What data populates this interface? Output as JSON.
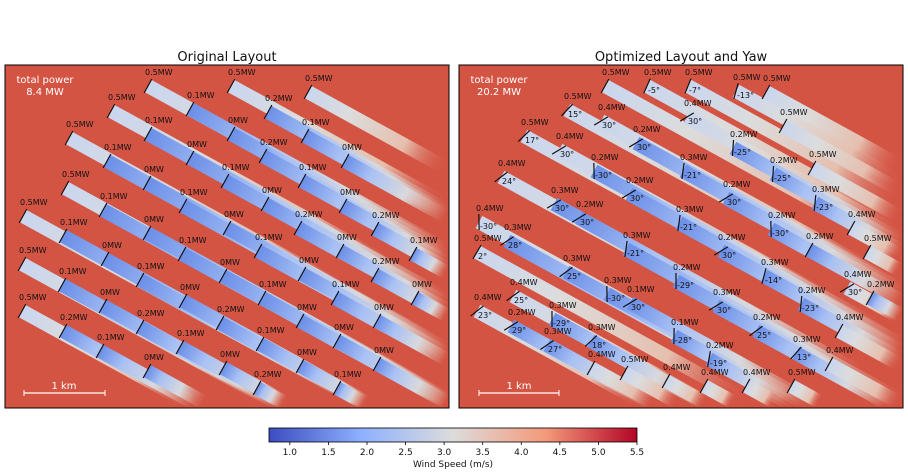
{
  "chart_data": {
    "type": "heatmap",
    "colorbar": {
      "label": "Wind Speed (m/s)",
      "ticks": [
        "1.0",
        "1.5",
        "2.0",
        "2.5",
        "3.0",
        "3.5",
        "4.0",
        "4.5",
        "5.0",
        "5.5"
      ],
      "range": [
        0.73,
        5.5
      ],
      "colormap": "coolwarm",
      "colors": [
        "#3b4cc0",
        "#8db0fe",
        "#dddcdc",
        "#f49a7b",
        "#b40426"
      ]
    },
    "background_color": "#d45444",
    "panels": [
      {
        "title": "Original Layout",
        "total_power_label": "total power",
        "total_power_value": "8.4 MW",
        "scale_label": "1 km",
        "turbines": [
          {
            "power": "0.5MW"
          },
          {
            "power": "0.5MW"
          },
          {
            "power": "0.5MW"
          },
          {
            "power": "0.5MW"
          },
          {
            "power": "0.1MW"
          },
          {
            "power": "0.2MW"
          },
          {
            "power": "0.5MW"
          },
          {
            "power": "0.1MW"
          },
          {
            "power": "0MW"
          },
          {
            "power": "0.1MW"
          },
          {
            "power": "0.1MW"
          },
          {
            "power": "0MW"
          },
          {
            "power": "0.2MW"
          },
          {
            "power": "0MW"
          },
          {
            "power": "0.5MW"
          },
          {
            "power": "0MW"
          },
          {
            "power": "0.1MW"
          },
          {
            "power": "0.1MW"
          },
          {
            "power": "0.5MW"
          },
          {
            "power": "0.1MW"
          },
          {
            "power": "0.1MW"
          },
          {
            "power": "0MW"
          },
          {
            "power": "0MW"
          },
          {
            "power": "0.1MW"
          },
          {
            "power": "0MW"
          },
          {
            "power": "0MW"
          },
          {
            "power": "0.2MW"
          },
          {
            "power": "0.2MW"
          },
          {
            "power": "0.1MW"
          },
          {
            "power": "0.1MW"
          },
          {
            "power": "0MW"
          },
          {
            "power": "0.1MW"
          },
          {
            "power": "0.5MW"
          },
          {
            "power": "0MW"
          },
          {
            "power": "0.1MW"
          },
          {
            "power": "0.1MW"
          },
          {
            "power": "0MW"
          },
          {
            "power": "0MW"
          },
          {
            "power": "0.2MW"
          },
          {
            "power": "0.5MW"
          },
          {
            "power": "0MW"
          },
          {
            "power": "0MW"
          },
          {
            "power": "0.1MW"
          },
          {
            "power": "0.1MW"
          },
          {
            "power": "0MW"
          },
          {
            "power": "0.2MW"
          },
          {
            "power": "0.2MW"
          },
          {
            "power": "0.2MW"
          },
          {
            "power": "0MW"
          },
          {
            "power": "0MW"
          },
          {
            "power": "0.1MW"
          },
          {
            "power": "0.1MW"
          },
          {
            "power": "0MW"
          },
          {
            "power": "0.1MW"
          },
          {
            "power": "0MW"
          },
          {
            "power": "0MW"
          },
          {
            "power": "0MW"
          },
          {
            "power": "0MW"
          },
          {
            "power": "0.2MW"
          },
          {
            "power": "0.1MW"
          }
        ]
      },
      {
        "title": "Optimized Layout and Yaw",
        "total_power_label": "total power",
        "total_power_value": "20.2 MW",
        "scale_label": "1 km",
        "turbines": [
          {
            "power": "0.5MW",
            "yaw": ""
          },
          {
            "power": "0.5MW",
            "yaw": "-5°"
          },
          {
            "power": "0.5MW",
            "yaw": "-7°"
          },
          {
            "power": "0.5MW",
            "yaw": "-13°"
          },
          {
            "power": "0.5MW",
            "yaw": ""
          },
          {
            "power": "0.5MW",
            "yaw": "15°"
          },
          {
            "power": "0.4MW",
            "yaw": "30°"
          },
          {
            "power": "0.4MW",
            "yaw": "30°"
          },
          {
            "power": "0.5MW",
            "yaw": ""
          },
          {
            "power": "0.5MW",
            "yaw": "17°"
          },
          {
            "power": "0.4MW",
            "yaw": "30°"
          },
          {
            "power": "0.2MW",
            "yaw": "30°"
          },
          {
            "power": "0.2MW",
            "yaw": "-25°"
          },
          {
            "power": "0.5MW",
            "yaw": ""
          },
          {
            "power": "0.2MW",
            "yaw": "-30°"
          },
          {
            "power": "0.3MW",
            "yaw": "-21°"
          },
          {
            "power": "0.2MW",
            "yaw": "-25°"
          },
          {
            "power": "0.4MW",
            "yaw": "24°"
          },
          {
            "power": "0.2MW",
            "yaw": "30°"
          },
          {
            "power": "0.2MW",
            "yaw": "30°"
          },
          {
            "power": "0.3MW",
            "yaw": "-23°"
          },
          {
            "power": "0.3MW",
            "yaw": "30°"
          },
          {
            "power": "0.2MW",
            "yaw": "30°"
          },
          {
            "power": "0.4MW",
            "yaw": "-30°"
          },
          {
            "power": "0.3MW",
            "yaw": "28°"
          },
          {
            "power": "0.3MW",
            "yaw": "-21°"
          },
          {
            "power": "0.2MW",
            "yaw": "-30°"
          },
          {
            "power": "0.4MW",
            "yaw": ""
          },
          {
            "power": "0.5MW",
            "yaw": "2°"
          },
          {
            "power": "0.3MW",
            "yaw": "-21°"
          },
          {
            "power": "0.2MW",
            "yaw": "30°"
          },
          {
            "power": "0.2MW",
            "yaw": ""
          },
          {
            "power": "0.5MW",
            "yaw": ""
          },
          {
            "power": "0.3MW",
            "yaw": "25°"
          },
          {
            "power": "0.2MW",
            "yaw": "-29°"
          },
          {
            "power": "0.3MW",
            "yaw": "-14°"
          },
          {
            "power": "0.3MW",
            "yaw": "-30°"
          },
          {
            "power": "0.1MW",
            "yaw": "30°"
          },
          {
            "power": "0.3MW",
            "yaw": "30°"
          },
          {
            "power": "0.2MW",
            "yaw": "-23°"
          },
          {
            "power": "0.4MW",
            "yaw": "30°"
          },
          {
            "power": "0.2MW",
            "yaw": ""
          },
          {
            "power": "0.4MW",
            "yaw": "25°"
          },
          {
            "power": "0.4MW",
            "yaw": "23°"
          },
          {
            "power": "0.2MW",
            "yaw": "29°"
          },
          {
            "power": "0.3MW",
            "yaw": "-29°"
          },
          {
            "power": "0.3MW",
            "yaw": "27°"
          },
          {
            "power": "0.3MW",
            "yaw": "18°"
          },
          {
            "power": "0.1MW",
            "yaw": "-28°"
          },
          {
            "power": "0.2MW",
            "yaw": "25°"
          },
          {
            "power": "0.4MW",
            "yaw": ""
          },
          {
            "power": "0.2MW",
            "yaw": "-19°"
          },
          {
            "power": "0.3MW",
            "yaw": "13°"
          },
          {
            "power": "0.4MW",
            "yaw": ""
          },
          {
            "power": "0.4MW",
            "yaw": ""
          },
          {
            "power": "0.5MW",
            "yaw": ""
          },
          {
            "power": "0.4MW",
            "yaw": ""
          },
          {
            "power": "0.4MW",
            "yaw": ""
          },
          {
            "power": "0.4MW",
            "yaw": ""
          },
          {
            "power": "0.5MW",
            "yaw": ""
          }
        ]
      }
    ]
  }
}
